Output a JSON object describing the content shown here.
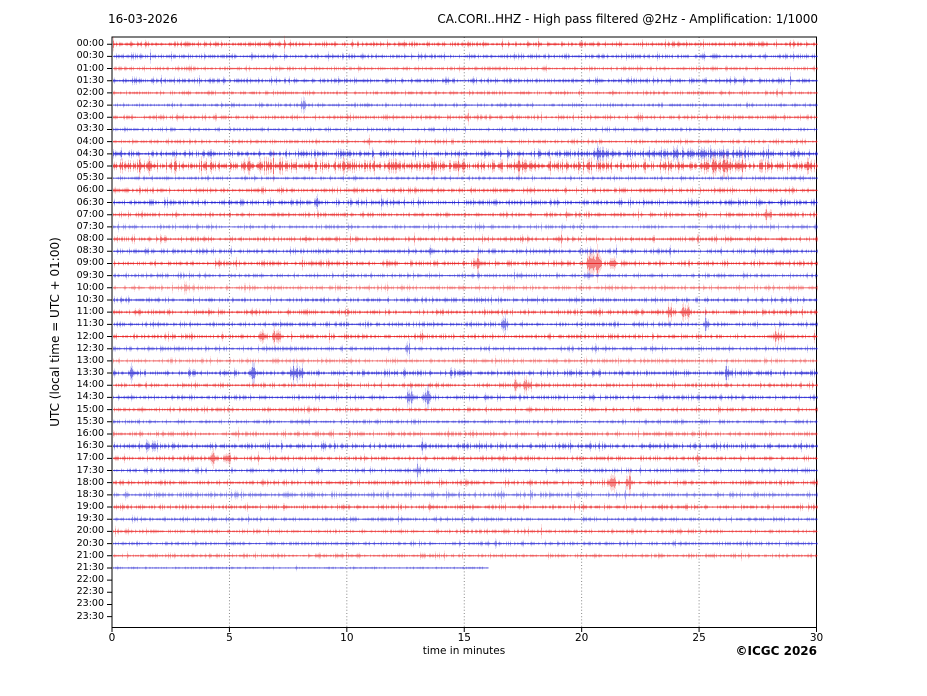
{
  "chart_data": {
    "type": "line",
    "subtype": "helicorder-seismogram",
    "date_label": "16-03-2026",
    "title": "CA.CORI..HHZ - High pass filtered @2Hz - Amplification: 1/1000",
    "xlabel": "time in minutes",
    "ylabel": "UTC (local time = UTC + 01:00)",
    "copyright": "©ICGC 2026",
    "xlim": [
      0,
      30
    ],
    "x_ticks": [
      0,
      5,
      10,
      15,
      20,
      25,
      30
    ],
    "grid_minutes": [
      5,
      10,
      15,
      20,
      25
    ],
    "grid_style": "dotted-gray",
    "legend": "none",
    "trace_colors": {
      "red": "#e81212",
      "blue": "#1515cf"
    },
    "rows": [
      {
        "label": "00:00",
        "color": "red",
        "amp": 0.3,
        "alpha": 0.8,
        "end": 30,
        "events": []
      },
      {
        "label": "00:30",
        "color": "blue",
        "amp": 0.28,
        "alpha": 0.7,
        "end": 30,
        "events": []
      },
      {
        "label": "01:00",
        "color": "red",
        "amp": 0.22,
        "alpha": 0.55,
        "end": 30,
        "events": []
      },
      {
        "label": "01:30",
        "color": "blue",
        "amp": 0.33,
        "alpha": 0.75,
        "end": 30,
        "events": []
      },
      {
        "label": "02:00",
        "color": "red",
        "amp": 0.2,
        "alpha": 0.6,
        "end": 30,
        "events": []
      },
      {
        "label": "02:30",
        "color": "blue",
        "amp": 0.18,
        "alpha": 0.6,
        "end": 30,
        "events": [
          {
            "t": 8.1,
            "w": 0.35,
            "a": 0.5
          }
        ]
      },
      {
        "label": "03:00",
        "color": "red",
        "amp": 0.3,
        "alpha": 0.6,
        "end": 30,
        "events": []
      },
      {
        "label": "03:30",
        "color": "blue",
        "amp": 0.2,
        "alpha": 0.6,
        "end": 30,
        "events": []
      },
      {
        "label": "04:00",
        "color": "red",
        "amp": 0.22,
        "alpha": 0.6,
        "end": 30,
        "events": []
      },
      {
        "label": "04:30",
        "color": "blue",
        "amp": 0.42,
        "alpha": 0.85,
        "end": 30,
        "events": [
          {
            "t": 24.5,
            "w": 11.5,
            "a": 0.15
          },
          {
            "t": 20.8,
            "w": 1.2,
            "a": 0.2
          }
        ]
      },
      {
        "label": "05:00",
        "color": "red",
        "amp": 0.85,
        "alpha": 0.88,
        "end": 30,
        "events": [
          {
            "t": 7.1,
            "w": 1.4,
            "a": 0.18
          },
          {
            "t": 17.4,
            "w": 1.6,
            "a": 0.18
          },
          {
            "t": 26.0,
            "w": 2.6,
            "a": 0.28
          }
        ]
      },
      {
        "label": "05:30",
        "color": "blue",
        "amp": 0.2,
        "alpha": 0.6,
        "end": 30,
        "events": []
      },
      {
        "label": "06:00",
        "color": "red",
        "amp": 0.3,
        "alpha": 0.7,
        "end": 30,
        "events": []
      },
      {
        "label": "06:30",
        "color": "blue",
        "amp": 0.38,
        "alpha": 0.8,
        "end": 30,
        "events": [
          {
            "t": 8.7,
            "w": 0.3,
            "a": 0.5
          }
        ]
      },
      {
        "label": "07:00",
        "color": "red",
        "amp": 0.3,
        "alpha": 0.7,
        "end": 30,
        "events": [
          {
            "t": 27.9,
            "w": 0.5,
            "a": 0.4
          }
        ]
      },
      {
        "label": "07:30",
        "color": "blue",
        "amp": 0.26,
        "alpha": 0.5,
        "end": 30,
        "events": []
      },
      {
        "label": "08:00",
        "color": "red",
        "amp": 0.3,
        "alpha": 0.7,
        "end": 30,
        "events": []
      },
      {
        "label": "08:30",
        "color": "blue",
        "amp": 0.3,
        "alpha": 0.7,
        "end": 30,
        "events": [
          {
            "t": 13.6,
            "w": 0.3,
            "a": 0.25
          }
        ]
      },
      {
        "label": "09:00",
        "color": "red",
        "amp": 0.32,
        "alpha": 0.75,
        "end": 30,
        "events": [
          {
            "t": 15.5,
            "w": 0.5,
            "a": 0.55
          },
          {
            "t": 20.5,
            "w": 0.9,
            "a": 0.7
          },
          {
            "t": 21.3,
            "w": 0.4,
            "a": 0.45
          }
        ]
      },
      {
        "label": "09:30",
        "color": "blue",
        "amp": 0.26,
        "alpha": 0.6,
        "end": 30,
        "events": []
      },
      {
        "label": "10:00",
        "color": "red",
        "amp": 0.34,
        "alpha": 0.45,
        "end": 30,
        "events": [
          {
            "t": 3.2,
            "w": 1.5,
            "a": 0.12
          }
        ]
      },
      {
        "label": "10:30",
        "color": "blue",
        "amp": 0.3,
        "alpha": 0.7,
        "end": 30,
        "events": []
      },
      {
        "label": "11:00",
        "color": "red",
        "amp": 0.3,
        "alpha": 0.75,
        "end": 30,
        "events": [
          {
            "t": 1.1,
            "w": 0.4,
            "a": 0.3
          },
          {
            "t": 2.4,
            "w": 0.3,
            "a": 0.22
          },
          {
            "t": 23.7,
            "w": 0.5,
            "a": 0.55
          },
          {
            "t": 24.4,
            "w": 0.6,
            "a": 0.65
          }
        ]
      },
      {
        "label": "11:30",
        "color": "blue",
        "amp": 0.28,
        "alpha": 0.7,
        "end": 30,
        "events": [
          {
            "t": 16.7,
            "w": 0.5,
            "a": 0.5
          },
          {
            "t": 25.3,
            "w": 0.3,
            "a": 0.4
          }
        ]
      },
      {
        "label": "12:00",
        "color": "red",
        "amp": 0.28,
        "alpha": 0.75,
        "end": 30,
        "events": [
          {
            "t": 6.4,
            "w": 0.5,
            "a": 0.55
          },
          {
            "t": 7.0,
            "w": 0.5,
            "a": 0.55
          },
          {
            "t": 13.2,
            "w": 0.4,
            "a": 0.45
          },
          {
            "t": 28.3,
            "w": 0.7,
            "a": 0.45
          }
        ]
      },
      {
        "label": "12:30",
        "color": "blue",
        "amp": 0.28,
        "alpha": 0.6,
        "end": 30,
        "events": [
          {
            "t": 12.6,
            "w": 0.3,
            "a": 0.4
          }
        ]
      },
      {
        "label": "13:00",
        "color": "red",
        "amp": 0.3,
        "alpha": 0.45,
        "end": 30,
        "events": []
      },
      {
        "label": "13:30",
        "color": "blue",
        "amp": 0.36,
        "alpha": 0.8,
        "end": 30,
        "events": [
          {
            "t": 0.8,
            "w": 0.3,
            "a": 0.4
          },
          {
            "t": 6.0,
            "w": 0.4,
            "a": 0.4
          },
          {
            "t": 7.9,
            "w": 0.9,
            "a": 0.45
          },
          {
            "t": 26.2,
            "w": 0.4,
            "a": 0.35
          }
        ]
      },
      {
        "label": "14:00",
        "color": "red",
        "amp": 0.28,
        "alpha": 0.7,
        "end": 30,
        "events": [
          {
            "t": 17.2,
            "w": 0.4,
            "a": 0.55
          },
          {
            "t": 17.7,
            "w": 0.5,
            "a": 0.6
          }
        ]
      },
      {
        "label": "14:30",
        "color": "blue",
        "amp": 0.28,
        "alpha": 0.7,
        "end": 30,
        "events": [
          {
            "t": 12.7,
            "w": 0.6,
            "a": 0.65
          },
          {
            "t": 13.4,
            "w": 0.5,
            "a": 0.55
          }
        ]
      },
      {
        "label": "15:00",
        "color": "red",
        "amp": 0.26,
        "alpha": 0.65,
        "end": 30,
        "events": []
      },
      {
        "label": "15:30",
        "color": "blue",
        "amp": 0.22,
        "alpha": 0.6,
        "end": 30,
        "events": []
      },
      {
        "label": "16:00",
        "color": "red",
        "amp": 0.3,
        "alpha": 0.55,
        "end": 30,
        "events": []
      },
      {
        "label": "16:30",
        "color": "blue",
        "amp": 0.38,
        "alpha": 0.8,
        "end": 30,
        "events": [
          {
            "t": 1.5,
            "w": 2.5,
            "a": 0.1
          },
          {
            "t": 9.0,
            "w": 0.3,
            "a": 0.4
          }
        ]
      },
      {
        "label": "17:00",
        "color": "red",
        "amp": 0.28,
        "alpha": 0.7,
        "end": 30,
        "events": [
          {
            "t": 4.3,
            "w": 0.5,
            "a": 0.6
          },
          {
            "t": 4.9,
            "w": 0.4,
            "a": 0.5
          }
        ]
      },
      {
        "label": "17:30",
        "color": "blue",
        "amp": 0.26,
        "alpha": 0.65,
        "end": 30,
        "events": [
          {
            "t": 13.0,
            "w": 0.4,
            "a": 0.35
          }
        ]
      },
      {
        "label": "18:00",
        "color": "red",
        "amp": 0.28,
        "alpha": 0.7,
        "end": 30,
        "events": [
          {
            "t": 21.3,
            "w": 0.5,
            "a": 0.55
          },
          {
            "t": 22.0,
            "w": 0.4,
            "a": 0.5
          }
        ]
      },
      {
        "label": "18:30",
        "color": "blue",
        "amp": 0.4,
        "alpha": 0.5,
        "end": 30,
        "events": []
      },
      {
        "label": "19:00",
        "color": "red",
        "amp": 0.3,
        "alpha": 0.7,
        "end": 30,
        "events": []
      },
      {
        "label": "19:30",
        "color": "blue",
        "amp": 0.24,
        "alpha": 0.6,
        "end": 30,
        "events": []
      },
      {
        "label": "20:00",
        "color": "red",
        "amp": 0.24,
        "alpha": 0.6,
        "end": 30,
        "events": []
      },
      {
        "label": "20:30",
        "color": "blue",
        "amp": 0.22,
        "alpha": 0.6,
        "end": 30,
        "events": []
      },
      {
        "label": "21:00",
        "color": "red",
        "amp": 0.24,
        "alpha": 0.55,
        "end": 30,
        "events": []
      },
      {
        "label": "21:30",
        "color": "blue",
        "amp": 0.05,
        "alpha": 0.55,
        "end": 16.0,
        "events": []
      },
      {
        "label": "22:00",
        "color": "red",
        "amp": 0,
        "alpha": 0,
        "end": 0,
        "events": []
      },
      {
        "label": "22:30",
        "color": "blue",
        "amp": 0,
        "alpha": 0,
        "end": 0,
        "events": []
      },
      {
        "label": "23:00",
        "color": "red",
        "amp": 0,
        "alpha": 0,
        "end": 0,
        "events": []
      },
      {
        "label": "23:30",
        "color": "blue",
        "amp": 0,
        "alpha": 0,
        "end": 0,
        "events": []
      }
    ]
  }
}
